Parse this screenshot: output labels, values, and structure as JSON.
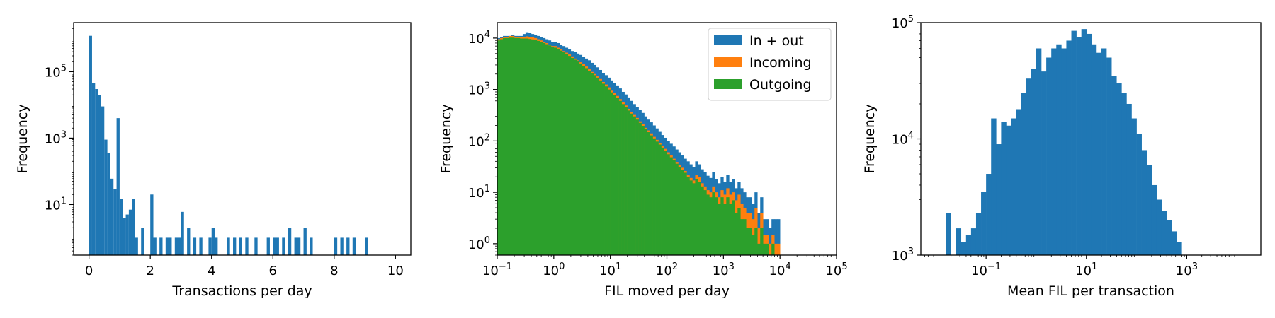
{
  "colors": {
    "in_out": "#1f77b4",
    "incoming": "#ff7f0e",
    "outgoing": "#2ca02c",
    "axis": "#000000",
    "background": "#ffffff"
  },
  "chart_data": [
    {
      "type": "histogram",
      "xlabel": "Transactions per day",
      "ylabel": "Frequency",
      "x_scale": "linear",
      "y_scale": "log",
      "xlim": [
        -0.5,
        10.5
      ],
      "ylim": [
        0.3,
        3000000
      ],
      "x_ticks": [
        {
          "value": 0,
          "label": "0"
        },
        {
          "value": 2,
          "label": "2"
        },
        {
          "value": 4,
          "label": "4"
        },
        {
          "value": 6,
          "label": "6"
        },
        {
          "value": 8,
          "label": "8"
        },
        {
          "value": 10,
          "label": "10"
        }
      ],
      "y_ticks": [
        {
          "value": 10,
          "base": "10",
          "exp": "1"
        },
        {
          "value": 1000,
          "base": "10",
          "exp": "3"
        },
        {
          "value": 100000,
          "base": "10",
          "exp": "5"
        }
      ],
      "bin_width": 0.1,
      "series": [
        {
          "color_key": "in_out",
          "bins": [
            [
              0.0,
              1200000
            ],
            [
              0.1,
              45000
            ],
            [
              0.2,
              30000
            ],
            [
              0.3,
              20000
            ],
            [
              0.4,
              9000
            ],
            [
              0.5,
              900
            ],
            [
              0.6,
              350
            ],
            [
              0.7,
              60
            ],
            [
              0.8,
              30
            ],
            [
              0.9,
              4000
            ],
            [
              1.0,
              15
            ],
            [
              1.1,
              4
            ],
            [
              1.2,
              5
            ],
            [
              1.3,
              7
            ],
            [
              1.4,
              15
            ],
            [
              1.5,
              1
            ],
            [
              1.7,
              2
            ],
            [
              2.0,
              20
            ],
            [
              2.1,
              1
            ],
            [
              2.3,
              1
            ],
            [
              2.5,
              1
            ],
            [
              2.6,
              1
            ],
            [
              2.8,
              1
            ],
            [
              2.9,
              1
            ],
            [
              3.0,
              6
            ],
            [
              3.2,
              2
            ],
            [
              3.4,
              1
            ],
            [
              3.6,
              1
            ],
            [
              3.9,
              1
            ],
            [
              4.0,
              2
            ],
            [
              4.1,
              1
            ],
            [
              4.5,
              1
            ],
            [
              4.7,
              1
            ],
            [
              4.9,
              1
            ],
            [
              5.1,
              1
            ],
            [
              5.4,
              1
            ],
            [
              5.8,
              1
            ],
            [
              6.0,
              1
            ],
            [
              6.1,
              1
            ],
            [
              6.3,
              1
            ],
            [
              6.5,
              2
            ],
            [
              6.7,
              1
            ],
            [
              6.8,
              1
            ],
            [
              7.0,
              2
            ],
            [
              7.2,
              1
            ],
            [
              8.0,
              1
            ],
            [
              8.2,
              1
            ],
            [
              8.4,
              1
            ],
            [
              8.6,
              1
            ],
            [
              9.0,
              1
            ]
          ]
        }
      ]
    },
    {
      "type": "histogram",
      "xlabel": "FIL moved per day",
      "ylabel": "Frequency",
      "x_scale": "log",
      "y_scale": "log",
      "xlim": [
        0.1,
        100000
      ],
      "ylim": [
        0.6,
        20000
      ],
      "x_ticks": [
        {
          "value": 0.1,
          "base": "10",
          "exp": "−1"
        },
        {
          "value": 1,
          "base": "10",
          "exp": "0"
        },
        {
          "value": 10,
          "base": "10",
          "exp": "1"
        },
        {
          "value": 100,
          "base": "10",
          "exp": "2"
        },
        {
          "value": 1000,
          "base": "10",
          "exp": "3"
        },
        {
          "value": 10000,
          "base": "10",
          "exp": "4"
        },
        {
          "value": 100000,
          "base": "10",
          "exp": "5"
        }
      ],
      "y_ticks": [
        {
          "value": 1,
          "base": "10",
          "exp": "0"
        },
        {
          "value": 10,
          "base": "10",
          "exp": "1"
        },
        {
          "value": 100,
          "base": "10",
          "exp": "2"
        },
        {
          "value": 1000,
          "base": "10",
          "exp": "3"
        },
        {
          "value": 10000,
          "base": "10",
          "exp": "4"
        }
      ],
      "log_bin_step": 0.05,
      "legend": {
        "position": "upper-right",
        "entries": [
          {
            "label": "In + out",
            "color_key": "in_out"
          },
          {
            "label": "Incoming",
            "color_key": "incoming"
          },
          {
            "label": "Outgoing",
            "color_key": "outgoing"
          }
        ]
      },
      "series": [
        {
          "name": "In + out",
          "color_key": "in_out",
          "log10_x_start": -1,
          "values": [
            10000,
            10500,
            11000,
            11000,
            11000,
            11500,
            11000,
            11000,
            11000,
            12000,
            13000,
            12500,
            12000,
            11500,
            11000,
            10500,
            10000,
            9500,
            9000,
            8500,
            8500,
            8000,
            7500,
            7000,
            6500,
            6000,
            5600,
            5300,
            5000,
            4700,
            4300,
            4000,
            3700,
            3300,
            3000,
            2700,
            2400,
            2100,
            1900,
            1700,
            1500,
            1350,
            1200,
            1050,
            900,
            800,
            700,
            600,
            520,
            450,
            400,
            350,
            300,
            260,
            230,
            200,
            175,
            150,
            130,
            115,
            100,
            88,
            78,
            68,
            60,
            52,
            45,
            40,
            35,
            31,
            40,
            35,
            28,
            25,
            21,
            19,
            25,
            18,
            15,
            20,
            16,
            22,
            16,
            18,
            12,
            16,
            12,
            10,
            8,
            8,
            6,
            10,
            4,
            8,
            3,
            3,
            2,
            3,
            3,
            3
          ]
        },
        {
          "name": "Incoming",
          "color_key": "incoming",
          "log10_x_start": -1,
          "values": [
            9500,
            10000,
            10500,
            10500,
            11000,
            11000,
            10500,
            10500,
            10500,
            10500,
            10800,
            10500,
            10300,
            10000,
            9500,
            9000,
            8500,
            8000,
            7500,
            7000,
            7000,
            6500,
            6000,
            5600,
            5200,
            4800,
            4400,
            4000,
            3700,
            3400,
            3100,
            2800,
            2500,
            2200,
            2000,
            1800,
            1600,
            1400,
            1250,
            1100,
            950,
            850,
            750,
            650,
            560,
            490,
            420,
            370,
            320,
            280,
            240,
            210,
            180,
            160,
            140,
            120,
            105,
            92,
            80,
            70,
            60,
            52,
            45,
            39,
            34,
            30,
            26,
            22,
            19,
            17,
            22,
            20,
            15,
            13,
            11,
            10,
            13,
            10,
            8,
            11,
            9,
            12,
            9,
            10,
            7,
            9,
            6,
            5,
            4,
            4,
            3,
            5,
            2,
            4,
            1.5,
            1.5,
            1,
            1.5,
            1,
            1
          ]
        },
        {
          "name": "Outgoing",
          "color_key": "outgoing",
          "log10_x_start": -1,
          "values": [
            9000,
            9500,
            10000,
            10000,
            10200,
            10200,
            10000,
            10000,
            9800,
            9800,
            9800,
            9600,
            9400,
            9100,
            8800,
            8400,
            8000,
            7600,
            7200,
            6700,
            6500,
            6100,
            5700,
            5300,
            4900,
            4500,
            4100,
            3800,
            3500,
            3200,
            2900,
            2600,
            2300,
            2100,
            1900,
            1700,
            1500,
            1300,
            1150,
            1000,
            880,
            780,
            690,
            600,
            520,
            450,
            390,
            340,
            300,
            260,
            225,
            195,
            170,
            148,
            128,
            112,
            97,
            85,
            74,
            64,
            55,
            48,
            42,
            36,
            31,
            27,
            24,
            20,
            17,
            15,
            18,
            16,
            13,
            11,
            9,
            8,
            10,
            8,
            6,
            8,
            6,
            8,
            6,
            7,
            4,
            5,
            3,
            3,
            2,
            2,
            1.5,
            2,
            1,
            2,
            1,
            1,
            0,
            1,
            0,
            0
          ]
        }
      ]
    },
    {
      "type": "histogram",
      "xlabel": "Mean FIL per transaction",
      "ylabel": "Frequency",
      "x_scale": "log",
      "y_scale": "log",
      "xlim": [
        0.005,
        30000
      ],
      "ylim": [
        1000,
        100000
      ],
      "x_ticks": [
        {
          "value": 0.1,
          "base": "10",
          "exp": "−1"
        },
        {
          "value": 10,
          "base": "10",
          "exp": "1"
        },
        {
          "value": 1000,
          "base": "10",
          "exp": "3"
        }
      ],
      "y_ticks": [
        {
          "value": 1000,
          "base": "10",
          "exp": "3"
        },
        {
          "value": 10000,
          "base": "10",
          "exp": "4"
        },
        {
          "value": 100000,
          "base": "10",
          "exp": "5"
        }
      ],
      "log_bin_step": 0.1,
      "series": [
        {
          "color_key": "in_out",
          "log10_x_start": -1.8,
          "values": [
            2300,
            0,
            1700,
            1300,
            1500,
            1700,
            2300,
            3500,
            5000,
            15000,
            9000,
            14000,
            13000,
            15000,
            18000,
            25000,
            33000,
            40000,
            60000,
            38000,
            50000,
            60000,
            65000,
            60000,
            70000,
            85000,
            75000,
            88000,
            80000,
            65000,
            55000,
            60000,
            50000,
            35000,
            30000,
            25000,
            20000,
            15000,
            11000,
            8000,
            6000,
            4000,
            3000,
            2400,
            2000,
            1600,
            1300
          ]
        }
      ]
    }
  ]
}
